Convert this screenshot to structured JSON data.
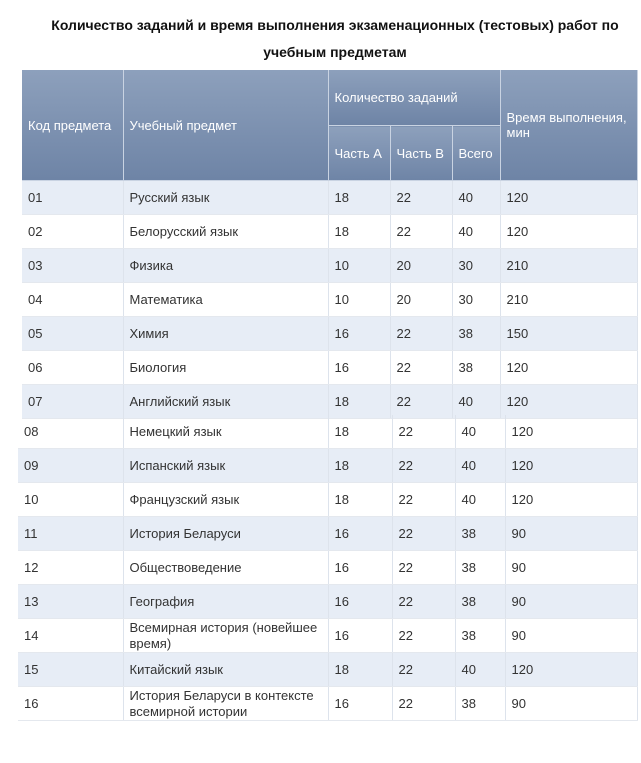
{
  "title": "Количество заданий и время выполнения экзаменационных (тестовых) работ по учебным предметам",
  "table": {
    "header": {
      "code": "Код предмета",
      "subject": "Учебный предмет",
      "count": "Количество заданий",
      "part_a": "Часть А",
      "part_b": "Часть В",
      "total": "Всего",
      "time": "Время выполнения, мин"
    },
    "rows": [
      [
        "01",
        "Русский язык",
        "18",
        "22",
        "40",
        "120"
      ],
      [
        "02",
        "Белорусский язык",
        "18",
        "22",
        "40",
        "120"
      ],
      [
        "03",
        "Физика",
        "10",
        "20",
        "30",
        "210"
      ],
      [
        "04",
        "Математика",
        "10",
        "20",
        "30",
        "210"
      ],
      [
        "05",
        "Химия",
        "16",
        "22",
        "38",
        "150"
      ],
      [
        "06",
        "Биология",
        "16",
        "22",
        "38",
        "120"
      ],
      [
        "07",
        "Английский язык",
        "18",
        "22",
        "40",
        "120"
      ],
      [
        "08",
        "Немецкий язык",
        "18",
        "22",
        "40",
        "120"
      ],
      [
        "09",
        "Испанский язык",
        "18",
        "22",
        "40",
        "120"
      ],
      [
        "10",
        "Французский язык",
        "18",
        "22",
        "40",
        "120"
      ],
      [
        "11",
        "История Беларуси",
        "16",
        "22",
        "38",
        "90"
      ],
      [
        "12",
        "Обществоведение",
        "16",
        "22",
        "38",
        "90"
      ],
      [
        "13",
        "География",
        "16",
        "22",
        "38",
        "90"
      ],
      [
        "14",
        "Всемирная история (новейшее время)",
        "16",
        "22",
        "38",
        "90"
      ],
      [
        "15",
        "Китайский язык",
        "18",
        "22",
        "40",
        "120"
      ],
      [
        "16",
        "История Беларуси в контексте всемирной истории",
        "16",
        "22",
        "38",
        "90"
      ]
    ]
  }
}
